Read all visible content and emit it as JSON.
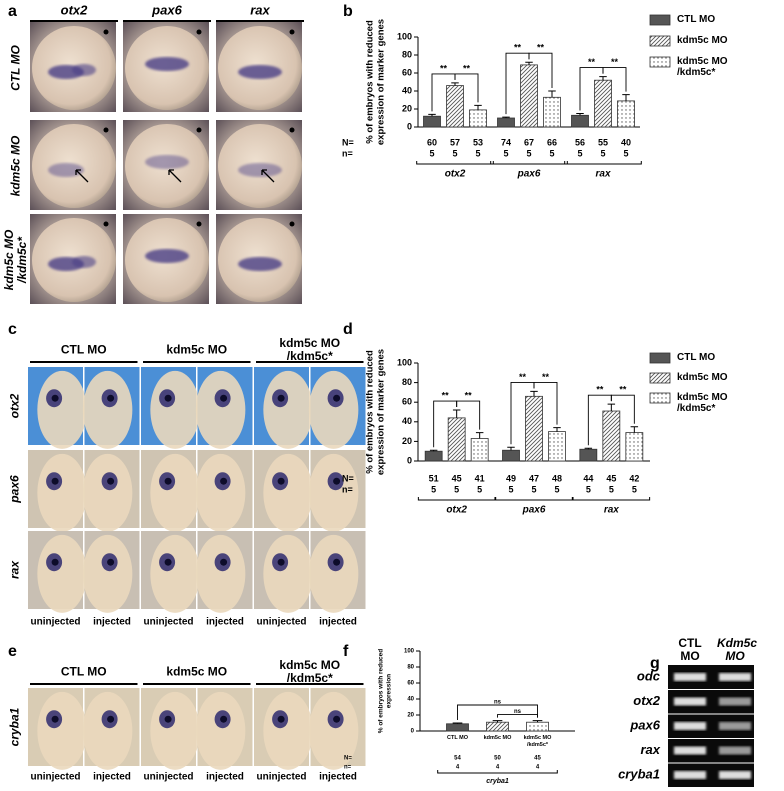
{
  "panels": {
    "a": {
      "label": "a",
      "columns": [
        "otx2",
        "pax6",
        "rax"
      ],
      "rows": [
        "CTL MO",
        "kdm5c MO",
        "kdm5c MO /kdm5c*"
      ]
    },
    "c": {
      "label": "c",
      "columns": [
        "CTL MO",
        "kdm5c MO",
        "kdm5c MO /kdm5c*"
      ],
      "rows": [
        "otx2",
        "pax6",
        "rax"
      ],
      "bottom_labels": [
        "uninjected",
        "injected",
        "uninjected",
        "injected",
        "uninjected",
        "injected"
      ]
    },
    "e": {
      "label": "e",
      "columns": [
        "CTL MO",
        "kdm5c MO",
        "kdm5c MO /kdm5c*"
      ],
      "rows": [
        "cryba1"
      ],
      "bottom_labels": [
        "uninjected",
        "injected",
        "uninjected",
        "injected",
        "uninjected",
        "injected"
      ]
    },
    "g": {
      "label": "g",
      "columns": [
        "CTL MO",
        "Kdm5c MO"
      ],
      "rows": [
        "odc",
        "otx2",
        "pax6",
        "rax",
        "cryba1"
      ]
    }
  },
  "chart_data": [
    {
      "type": "bar",
      "panel_label": "b",
      "ylabel": "% of embryos with reduced expression of marker genes",
      "categories": [
        "otx2",
        "pax6",
        "rax"
      ],
      "ylim": [
        0,
        100
      ],
      "yticks": [
        0,
        20,
        40,
        60,
        80,
        100
      ],
      "N_label": "N=",
      "n_label": "n=",
      "legend": "right",
      "series": [
        {
          "name": "CTL MO",
          "color": "#555555",
          "pattern": "solid",
          "values": [
            12,
            10,
            13
          ],
          "errors": [
            2,
            1,
            2
          ],
          "N": [
            60,
            74,
            56
          ],
          "n": [
            5,
            5,
            5
          ]
        },
        {
          "name": "kdm5c MO",
          "color": "#555555",
          "pattern": "hatch",
          "values": [
            46,
            69,
            52
          ],
          "errors": [
            3,
            3,
            4
          ],
          "N": [
            57,
            67,
            55
          ],
          "n": [
            5,
            5,
            5
          ]
        },
        {
          "name": "kdm5c MO /kdm5c*",
          "color": "#555555",
          "pattern": "dots",
          "values": [
            19,
            33,
            29
          ],
          "errors": [
            5,
            7,
            7
          ],
          "N": [
            53,
            66,
            40
          ],
          "n": [
            5,
            5,
            5
          ]
        }
      ],
      "brackets": [
        {
          "category": 0,
          "from": 0,
          "to": 1,
          "label": "**"
        },
        {
          "category": 0,
          "from": 1,
          "to": 2,
          "label": "**"
        },
        {
          "category": 1,
          "from": 0,
          "to": 1,
          "label": "**"
        },
        {
          "category": 1,
          "from": 1,
          "to": 2,
          "label": "**"
        },
        {
          "category": 2,
          "from": 0,
          "to": 1,
          "label": "**"
        },
        {
          "category": 2,
          "from": 1,
          "to": 2,
          "label": "**"
        }
      ]
    },
    {
      "type": "bar",
      "panel_label": "d",
      "ylabel": "% of embryos with reduced expression of marker genes",
      "categories": [
        "otx2",
        "pax6",
        "rax"
      ],
      "ylim": [
        0,
        100
      ],
      "yticks": [
        0,
        20,
        40,
        60,
        80,
        100
      ],
      "N_label": "N=",
      "n_label": "n=",
      "legend": "right",
      "series": [
        {
          "name": "CTL MO",
          "color": "#555555",
          "pattern": "solid",
          "values": [
            10,
            11,
            12
          ],
          "errors": [
            1,
            3,
            1
          ],
          "N": [
            51,
            49,
            44
          ],
          "n": [
            5,
            5,
            5
          ]
        },
        {
          "name": "kdm5c MO",
          "color": "#555555",
          "pattern": "hatch",
          "values": [
            44,
            66,
            51
          ],
          "errors": [
            8,
            5,
            7
          ],
          "N": [
            45,
            47,
            45
          ],
          "n": [
            5,
            5,
            5
          ]
        },
        {
          "name": "kdm5c MO /kdm5c*",
          "color": "#555555",
          "pattern": "dots",
          "values": [
            23,
            30,
            29
          ],
          "errors": [
            6,
            4,
            6
          ],
          "N": [
            41,
            48,
            42
          ],
          "n": [
            5,
            5,
            5
          ]
        }
      ],
      "brackets": [
        {
          "category": 0,
          "from": 0,
          "to": 1,
          "label": "**"
        },
        {
          "category": 0,
          "from": 1,
          "to": 2,
          "label": "**"
        },
        {
          "category": 1,
          "from": 0,
          "to": 1,
          "label": "**"
        },
        {
          "category": 1,
          "from": 1,
          "to": 2,
          "label": "**"
        },
        {
          "category": 2,
          "from": 0,
          "to": 1,
          "label": "**"
        },
        {
          "category": 2,
          "from": 1,
          "to": 2,
          "label": "**"
        }
      ]
    },
    {
      "type": "bar",
      "panel_label": "f",
      "ylabel": "% of embryos with reduced expression",
      "categories": [
        "cryba1"
      ],
      "ylim": [
        0,
        100
      ],
      "yticks": [
        0,
        20,
        40,
        60,
        80,
        100
      ],
      "N_label": "N=",
      "n_label": "n=",
      "legend": "under-bars",
      "series": [
        {
          "name": "CTL MO",
          "color": "#555555",
          "pattern": "solid",
          "values": [
            9
          ],
          "errors": [
            1
          ],
          "N": [
            54
          ],
          "n": [
            4
          ]
        },
        {
          "name": "kdm5c MO",
          "color": "#555555",
          "pattern": "hatch",
          "values": [
            11
          ],
          "errors": [
            2
          ],
          "N": [
            50
          ],
          "n": [
            4
          ]
        },
        {
          "name": "kdm5c MO /kdm5c*",
          "color": "#555555",
          "pattern": "dots",
          "values": [
            11
          ],
          "errors": [
            2
          ],
          "N": [
            45
          ],
          "n": [
            4
          ]
        }
      ],
      "brackets": [
        {
          "category": 0,
          "from": 0,
          "to": 2,
          "label": "ns"
        },
        {
          "category": 0,
          "from": 1,
          "to": 2,
          "label": "ns"
        }
      ]
    }
  ]
}
